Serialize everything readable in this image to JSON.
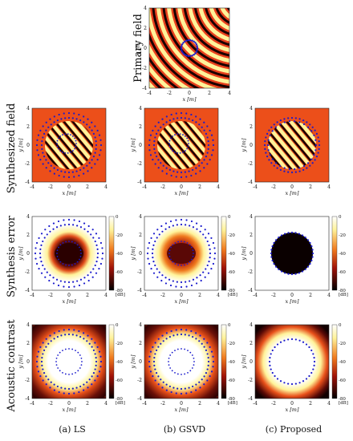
{
  "rows": [
    {
      "label": "Primary field"
    },
    {
      "label": "Synthesized field"
    },
    {
      "label": "Synthesis error"
    },
    {
      "label": "Acoustic contrast"
    }
  ],
  "columns": [
    {
      "caption": "(a) LS"
    },
    {
      "caption": "(b) GSVD"
    },
    {
      "caption": "(c) Proposed"
    }
  ],
  "axes": {
    "xlabel": "x [m]",
    "ylabel": "y [m]",
    "ticks": [
      "-4",
      "-2",
      "0",
      "2",
      "4"
    ]
  },
  "colorbar": {
    "ticks": [
      "0",
      "-20",
      "-40",
      "-60",
      "-80"
    ],
    "unit": "[dB]"
  },
  "colors": {
    "field_dark": "#1a0000",
    "field_mid": "#e8401c",
    "field_light": "#fff6a0",
    "loudspeaker": "#1a1acc",
    "error_zone": "#0a0000"
  }
}
